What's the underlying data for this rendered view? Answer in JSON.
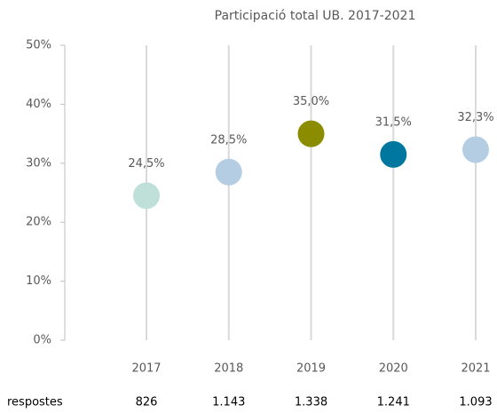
{
  "chart_data": {
    "type": "dot",
    "title": "Participació total UB. 2017-2021",
    "categories": [
      "2017",
      "2018",
      "2019",
      "2020",
      "2021"
    ],
    "values": [
      24.5,
      28.5,
      35.0,
      31.5,
      32.3
    ],
    "value_labels": [
      "24,5%",
      "28,5%",
      "35,0%",
      "31,5%",
      "32,3%"
    ],
    "colors": [
      "#bfe0d8",
      "#b4cde3",
      "#8c8c00",
      "#00779e",
      "#b4cde3"
    ],
    "ylim": [
      0,
      50
    ],
    "yticks": [
      {
        "value": 0,
        "label": "0%"
      },
      {
        "value": 10,
        "label": "10%"
      },
      {
        "value": 20,
        "label": "20%"
      },
      {
        "value": 30,
        "label": "30%"
      },
      {
        "value": 40,
        "label": "40%"
      },
      {
        "value": 50,
        "label": "50%"
      }
    ],
    "grid": true,
    "row_label": "respostes",
    "row_values": [
      "826",
      "1.143",
      "1.338",
      "1.241",
      "1.093"
    ]
  }
}
